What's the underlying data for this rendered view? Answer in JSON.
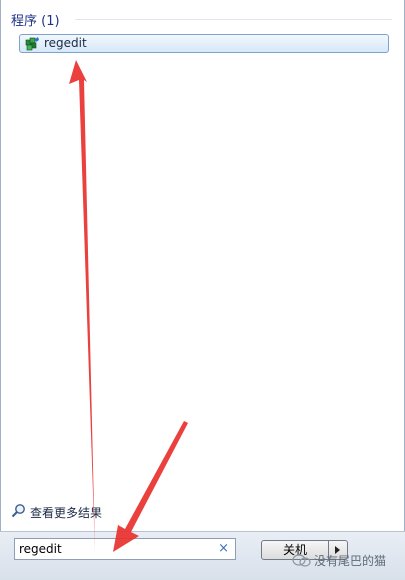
{
  "results": {
    "section_title": "程序 (1)",
    "items": [
      {
        "label": "regedit",
        "icon": "registry-editor-icon"
      }
    ]
  },
  "more_results": {
    "label": "查看更多结果",
    "icon": "magnifier-icon"
  },
  "search": {
    "value": "regedit",
    "clear_icon": "×"
  },
  "shutdown": {
    "label": "关机",
    "arrow_icon": "right-triangle-icon"
  },
  "watermark": {
    "text": "没有尾巴的猫",
    "icon": "wechat-icon"
  },
  "annotations": {
    "color": "#e8312f",
    "type": "red-arrows"
  }
}
